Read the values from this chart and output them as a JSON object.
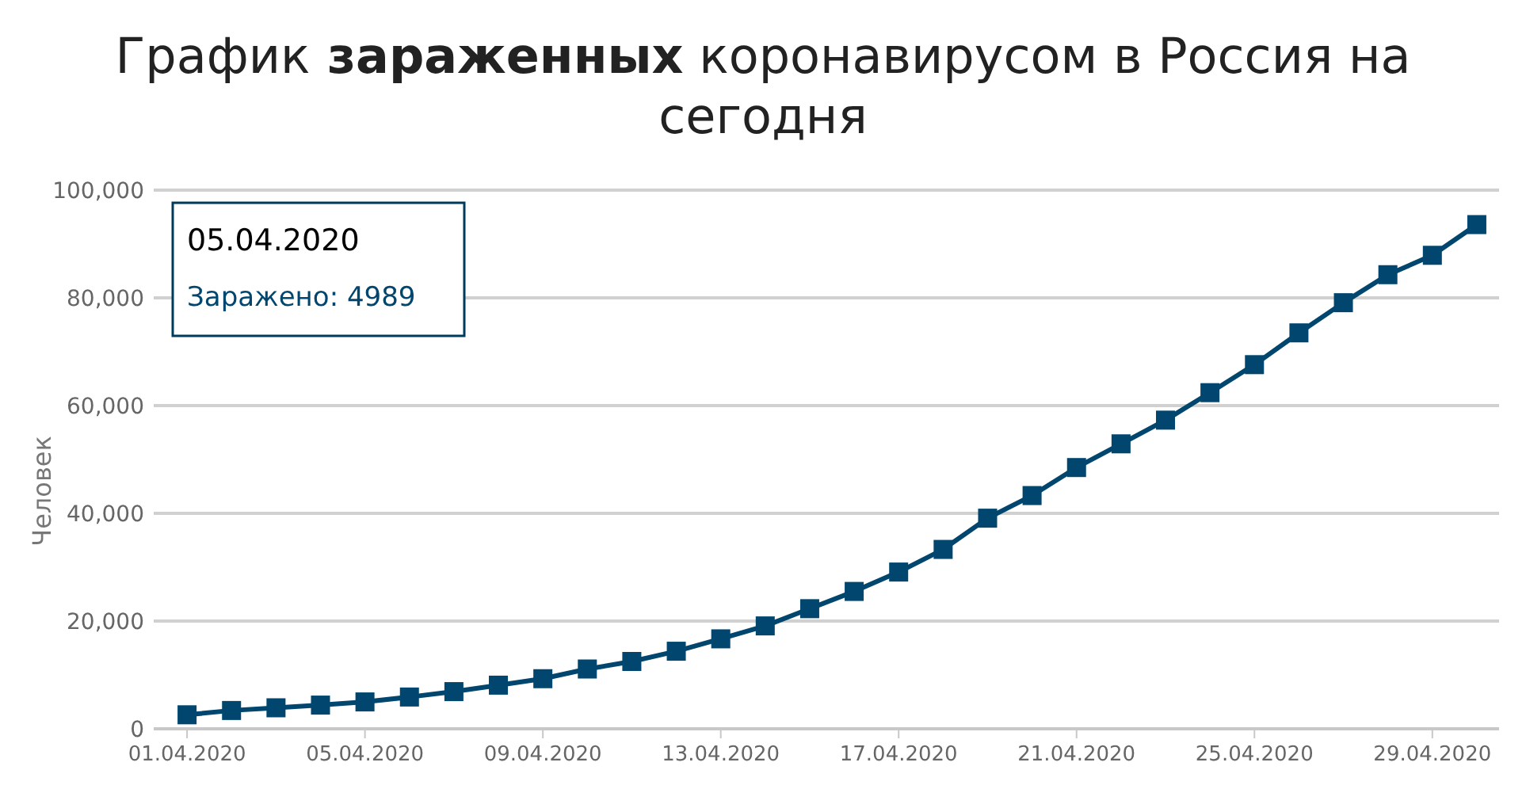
{
  "chart_data": {
    "type": "line",
    "title": "График зараженных коронавирусом в Россия на сегодня",
    "ylabel": "Человек",
    "x": [
      "2020-04-01",
      "2020-04-02",
      "2020-04-03",
      "2020-04-04",
      "2020-04-05",
      "2020-04-06",
      "2020-04-07",
      "2020-04-08",
      "2020-04-09",
      "2020-04-10",
      "2020-04-11",
      "2020-04-12",
      "2020-04-13",
      "2020-04-14",
      "2020-04-15",
      "2020-04-16",
      "2020-04-17",
      "2020-04-18",
      "2020-04-19",
      "2020-04-20",
      "2020-04-21",
      "2020-04-22",
      "2020-04-23",
      "2020-04-24",
      "2020-04-25",
      "2020-04-26",
      "2020-04-27",
      "2020-04-28",
      "2020-04-29",
      "2020-04-30"
    ],
    "series": [
      {
        "color": "#00466e",
        "values": [
          2600,
          3400,
          3900,
          4400,
          4989,
          5900,
          6900,
          8100,
          9300,
          11100,
          12500,
          14400,
          16700,
          19100,
          22300,
          25500,
          29100,
          33300,
          39100,
          43300,
          48500,
          52900,
          57300,
          62400,
          67600,
          73500,
          79100,
          84300,
          87900,
          93600
        ]
      }
    ],
    "xlim": [
      "2020-03-31T06:00",
      "2020-04-30T12:00"
    ],
    "xticks": [
      {
        "value": "2020-04-01",
        "label": "01.04.2020"
      },
      {
        "value": "2020-04-05",
        "label": "05.04.2020"
      },
      {
        "value": "2020-04-09",
        "label": "09.04.2020"
      },
      {
        "value": "2020-04-13",
        "label": "13.04.2020"
      },
      {
        "value": "2020-04-17",
        "label": "17.04.2020"
      },
      {
        "value": "2020-04-21",
        "label": "21.04.2020"
      },
      {
        "value": "2020-04-25",
        "label": "25.04.2020"
      },
      {
        "value": "2020-04-29",
        "label": "29.04.2020"
      }
    ],
    "ylim": [
      0,
      100000
    ],
    "yticks": [
      0,
      {
        "value": 20000,
        "label": "20,000"
      },
      {
        "value": 40000,
        "label": "40,000"
      },
      {
        "value": 60000,
        "label": "60,000"
      },
      {
        "value": 80000,
        "label": "80,000"
      },
      {
        "value": 100000,
        "label": "100,000"
      }
    ],
    "grid": "y",
    "marker": "square",
    "line_style": "solid",
    "annotations": [
      "05.04.2020\nЗаражено: 4989"
    ]
  }
}
